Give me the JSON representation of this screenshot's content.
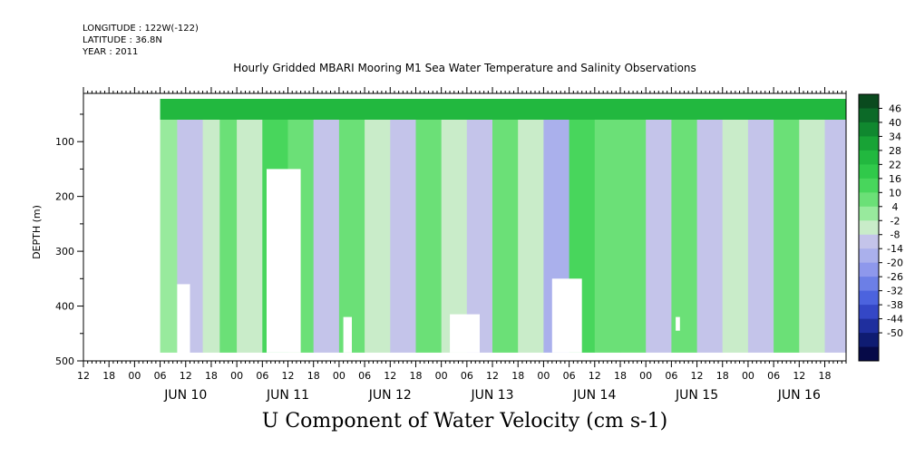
{
  "header": {
    "longitude": "LONGITUDE : 122W(-122)",
    "latitude": "LATITUDE : 36.8N",
    "year": "YEAR : 2011"
  },
  "chart_data": {
    "type": "heatmap",
    "title": "Hourly Gridded MBARI Mooring M1 Sea Water Temperature and Salinity Observations",
    "bottom_title": "U Component of Water Velocity (cm s-1)",
    "ylabel": "DEPTH (m)",
    "xlabel": "",
    "y_axis": {
      "range": [
        500,
        12
      ],
      "reversed": true,
      "major_ticks": [
        100,
        200,
        300,
        400,
        500
      ],
      "tick_labels": [
        "100",
        "200",
        "300",
        "400",
        "500"
      ],
      "minor_step": 50
    },
    "x_axis": {
      "start": "2011-06-09T12:00",
      "end": "2011-06-16T23:00",
      "hour_tick_labels": [
        "00",
        "06",
        "12",
        "18"
      ],
      "day_labels": [
        {
          "label": "JUN 10",
          "date": "2011-06-10"
        },
        {
          "label": "JUN 11",
          "date": "2011-06-11"
        },
        {
          "label": "JUN 12",
          "date": "2011-06-12"
        },
        {
          "label": "JUN 13",
          "date": "2011-06-13"
        },
        {
          "label": "JUN 14",
          "date": "2011-06-14"
        },
        {
          "label": "JUN 15",
          "date": "2011-06-15"
        },
        {
          "label": "JUN 16",
          "date": "2011-06-16"
        }
      ]
    },
    "colorbar": {
      "levels": [
        46,
        40,
        34,
        28,
        22,
        16,
        10,
        4,
        -2,
        -8,
        -14,
        -20,
        -26,
        -32,
        -38,
        -44,
        -50
      ],
      "level_labels": [
        "46",
        "40",
        "34",
        "28",
        "22",
        "16",
        "10",
        "4",
        "-2",
        "-8",
        "-14",
        "-20",
        "-26",
        "-32",
        "-38",
        "-44",
        "-50"
      ],
      "colors": [
        "#0a4a1e",
        "#0c6a28",
        "#10882f",
        "#18a336",
        "#22b83f",
        "#30c94a",
        "#48d65c",
        "#6be077",
        "#98ea9d",
        "#c9ecc9",
        "#c4c4ea",
        "#aab0ec",
        "#8e98ec",
        "#6c7fe6",
        "#4c63de",
        "#3447c6",
        "#1f2f9e",
        "#0f1c72",
        "#060a48"
      ]
    },
    "data_extent": {
      "time_start": "2011-06-10T06:00",
      "time_end": "2011-06-16T23:00",
      "depth_top": 22,
      "depth_bottom": 485
    },
    "bands": [
      {
        "t": "2011-06-10T06:00",
        "u": 2
      },
      {
        "t": "2011-06-10T10:00",
        "u": -14
      },
      {
        "t": "2011-06-10T16:00",
        "u": -8
      },
      {
        "t": "2011-06-10T20:00",
        "u": 8
      },
      {
        "t": "2011-06-11T00:00",
        "u": -6
      },
      {
        "t": "2011-06-11T06:00",
        "u": 12
      },
      {
        "t": "2011-06-11T12:00",
        "u": 6
      },
      {
        "t": "2011-06-11T18:00",
        "u": -10
      },
      {
        "t": "2011-06-12T00:00",
        "u": 6
      },
      {
        "t": "2011-06-12T06:00",
        "u": -4
      },
      {
        "t": "2011-06-12T12:00",
        "u": -12
      },
      {
        "t": "2011-06-12T18:00",
        "u": 4
      },
      {
        "t": "2011-06-13T00:00",
        "u": -8
      },
      {
        "t": "2011-06-13T06:00",
        "u": -14
      },
      {
        "t": "2011-06-13T12:00",
        "u": 6
      },
      {
        "t": "2011-06-13T18:00",
        "u": -6
      },
      {
        "t": "2011-06-14T00:00",
        "u": -20
      },
      {
        "t": "2011-06-14T06:00",
        "u": 10
      },
      {
        "t": "2011-06-14T12:00",
        "u": 4
      },
      {
        "t": "2011-06-14T18:00",
        "u": 6
      },
      {
        "t": "2011-06-15T00:00",
        "u": -10
      },
      {
        "t": "2011-06-15T06:00",
        "u": 8
      },
      {
        "t": "2011-06-15T12:00",
        "u": -14
      },
      {
        "t": "2011-06-15T18:00",
        "u": -4
      },
      {
        "t": "2011-06-16T00:00",
        "u": -12
      },
      {
        "t": "2011-06-16T06:00",
        "u": 8
      },
      {
        "t": "2011-06-16T12:00",
        "u": -8
      },
      {
        "t": "2011-06-16T18:00",
        "u": -14
      },
      {
        "t": "2011-06-16T23:00",
        "u": -10
      }
    ],
    "surface_layer": {
      "depth_range": [
        22,
        60
      ],
      "u": 22
    },
    "missing_regions": [
      {
        "t0": "2011-06-10T10:00",
        "t1": "2011-06-10T13:00",
        "d0": 360,
        "d1": 485
      },
      {
        "t0": "2011-06-11T07:00",
        "t1": "2011-06-11T15:00",
        "d0": 150,
        "d1": 485
      },
      {
        "t0": "2011-06-12T01:00",
        "t1": "2011-06-12T03:00",
        "d0": 420,
        "d1": 485
      },
      {
        "t0": "2011-06-13T02:00",
        "t1": "2011-06-13T09:00",
        "d0": 415,
        "d1": 485
      },
      {
        "t0": "2011-06-14T02:00",
        "t1": "2011-06-14T09:00",
        "d0": 350,
        "d1": 485
      },
      {
        "t0": "2011-06-15T07:00",
        "t1": "2011-06-15T08:00",
        "d0": 420,
        "d1": 445
      }
    ]
  }
}
